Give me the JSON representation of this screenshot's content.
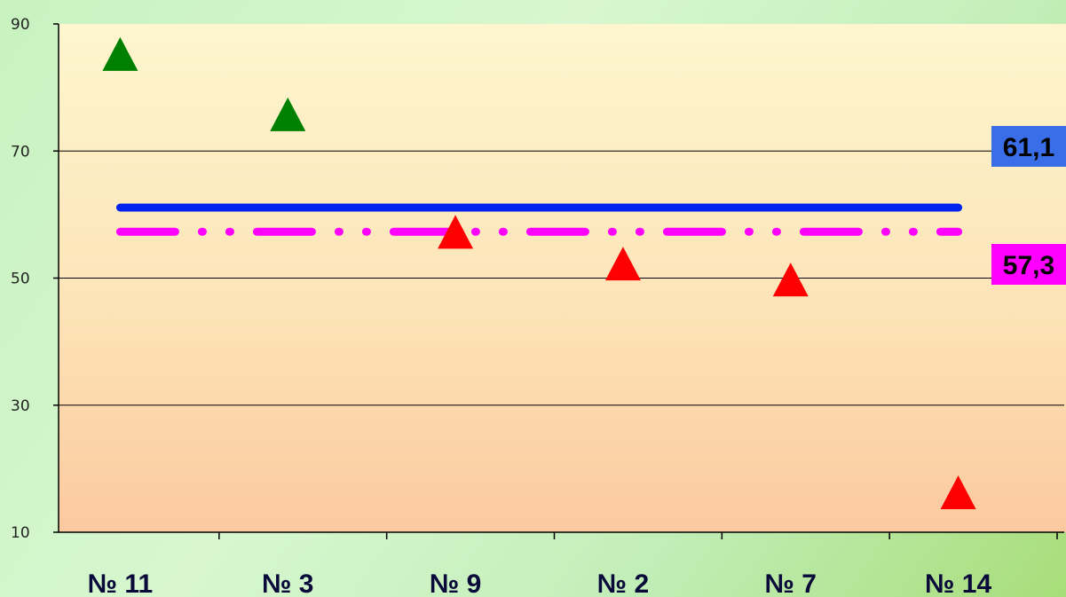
{
  "chart_data": {
    "type": "scatter",
    "title": "",
    "xlabel": "",
    "ylabel": "",
    "ylim": [
      10,
      90
    ],
    "yticks": [
      90,
      70,
      50,
      30,
      10
    ],
    "grid": true,
    "categories": [
      "№ 11",
      "№ 3",
      "№ 9",
      "№ 2",
      "№ 7",
      "№ 14"
    ],
    "points": [
      {
        "category": "№ 11",
        "value": 85,
        "color": "#008000"
      },
      {
        "category": "№ 3",
        "value": 75.5,
        "color": "#008000"
      },
      {
        "category": "№ 9",
        "value": 57,
        "color": "#ff0000"
      },
      {
        "category": "№ 2",
        "value": 52,
        "color": "#ff0000"
      },
      {
        "category": "№ 7",
        "value": 49.5,
        "color": "#ff0000"
      },
      {
        "category": "№ 14",
        "value": 16,
        "color": "#ff0000"
      }
    ],
    "reference_lines": [
      {
        "value": 61.1,
        "label": "61,1",
        "color": "#0022ee",
        "label_bg": "#3a6ee8",
        "style": "solid"
      },
      {
        "value": 57.3,
        "label": "57,3",
        "color": "#ff00ff",
        "label_bg": "#ff00ff",
        "style": "dash-dot"
      }
    ]
  }
}
